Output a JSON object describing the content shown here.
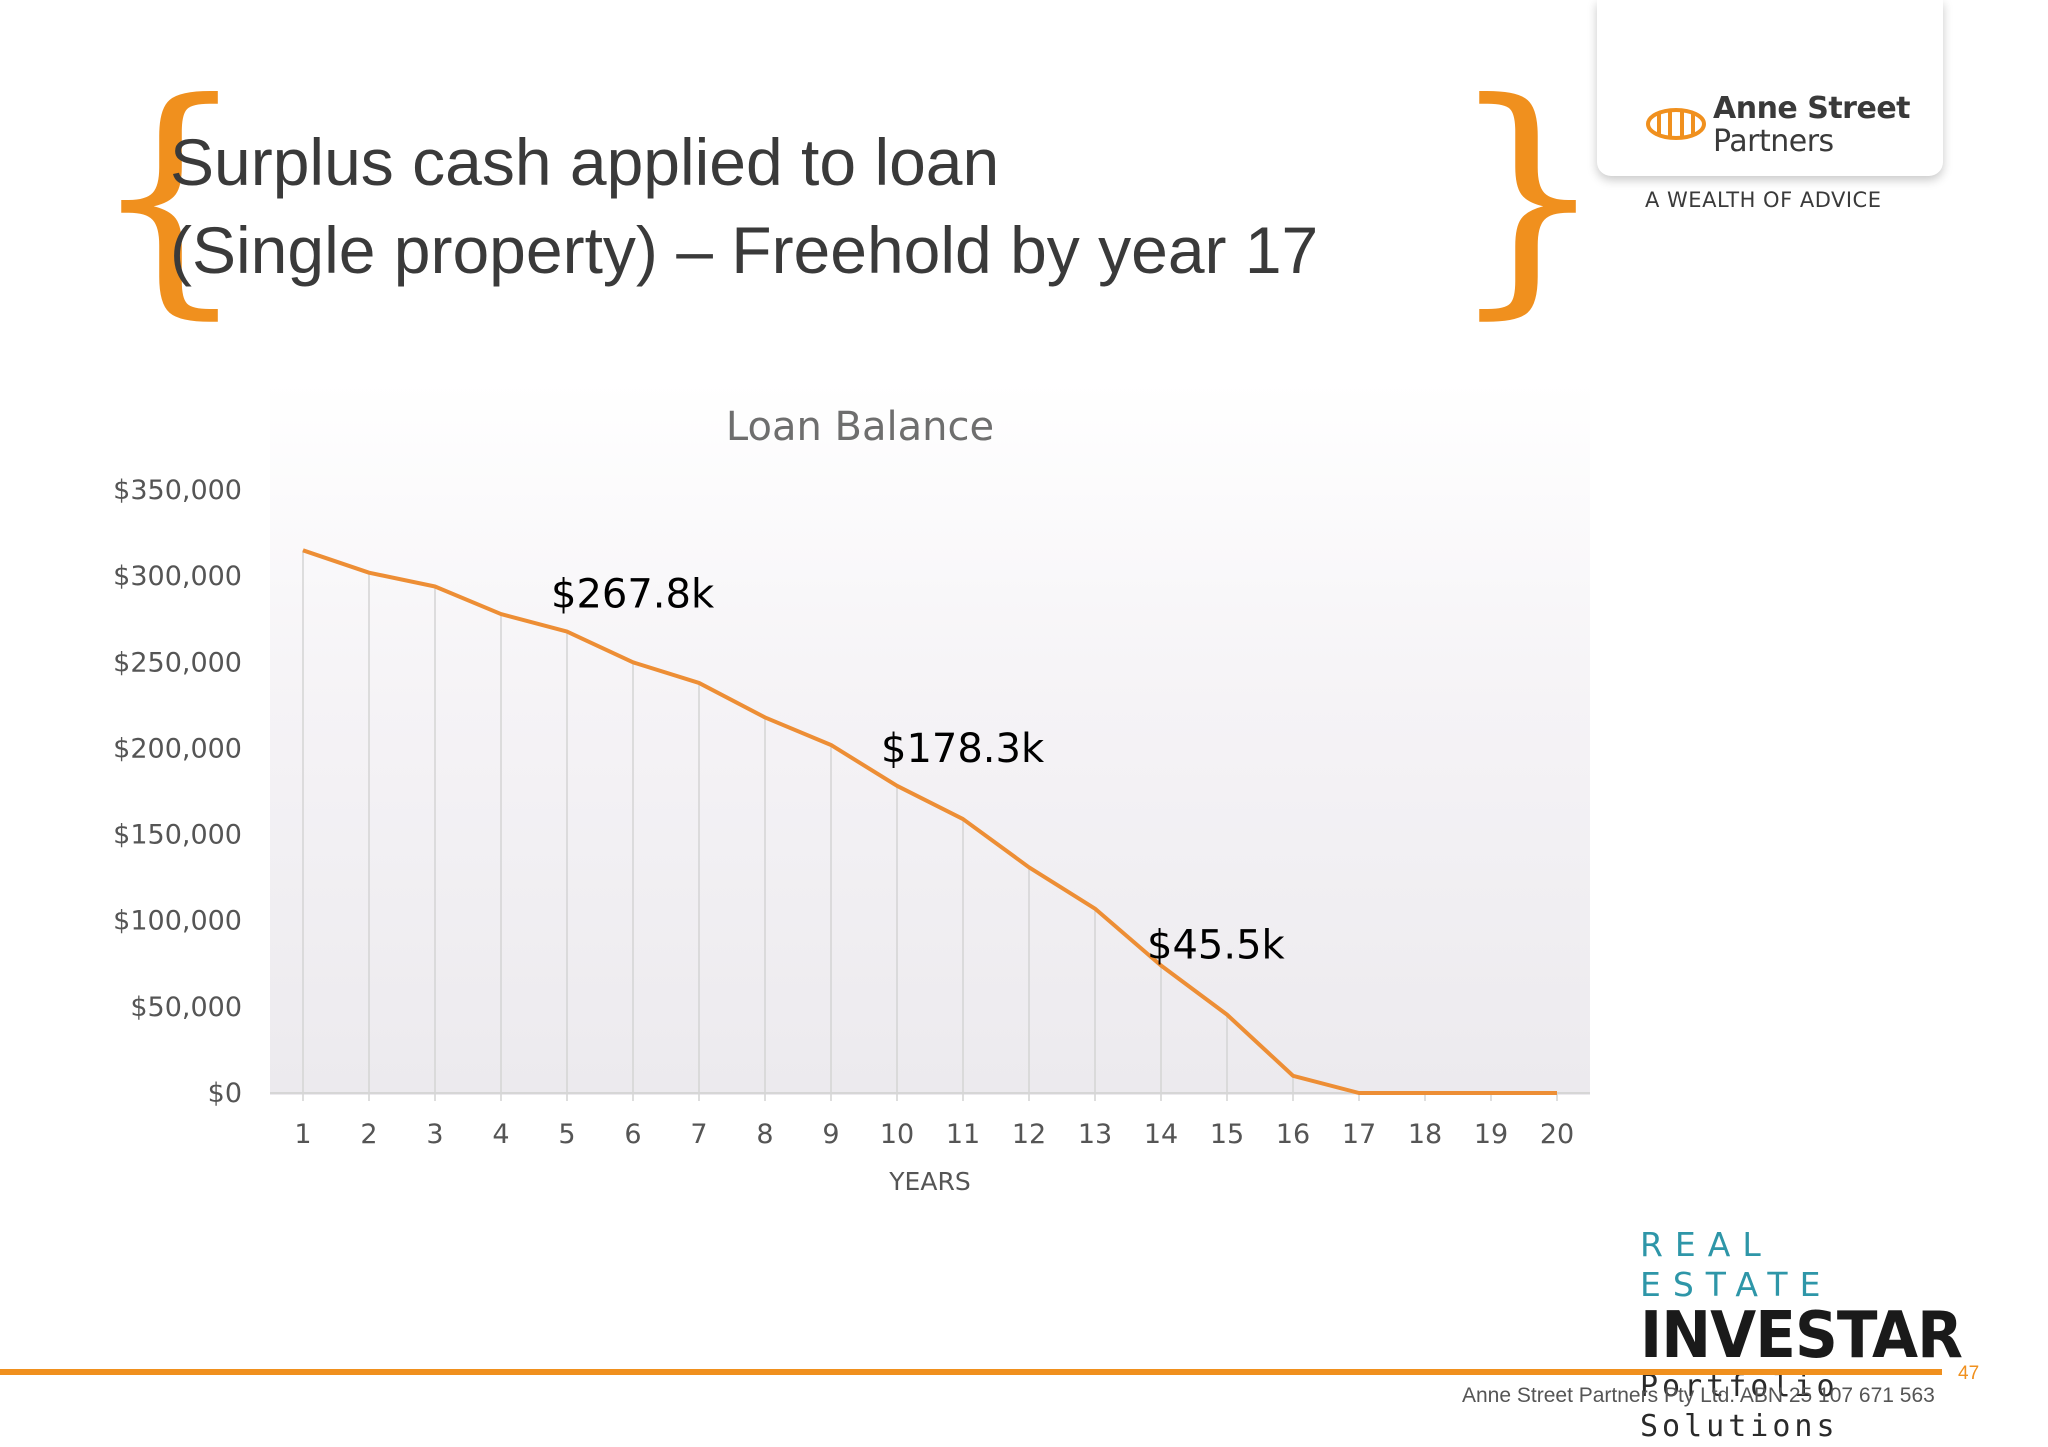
{
  "slide": {
    "brace_left": "{",
    "brace_right": "}",
    "title_line1": "Surplus cash applied to loan",
    "title_line2": "(Single property) – Freehold by year 17",
    "accent_color": "#f0901e"
  },
  "logo": {
    "name_line1": "Anne Street",
    "name_line2": "Partners",
    "tagline": "A WEALTH OF ADVICE"
  },
  "chart_data": {
    "type": "line",
    "title": "Loan Balance",
    "xlabel": "YEARS",
    "ylabel": "",
    "x": [
      1,
      2,
      3,
      4,
      5,
      6,
      7,
      8,
      9,
      10,
      11,
      12,
      13,
      14,
      15,
      16,
      17,
      18,
      19,
      20
    ],
    "series": [
      {
        "values": [
          315000,
          302000,
          294000,
          278000,
          267800,
          250000,
          238000,
          218000,
          202000,
          178300,
          159000,
          131000,
          107000,
          74000,
          45500,
          10000,
          0,
          0,
          0,
          0
        ],
        "color": "#ed8e35"
      }
    ],
    "ylim": [
      0,
      350000
    ],
    "yticks": [
      0,
      50000,
      100000,
      150000,
      200000,
      250000,
      300000,
      350000
    ],
    "ytick_labels": [
      "$0",
      "$50,000",
      "$100,000",
      "$150,000",
      "$200,000",
      "$250,000",
      "$300,000",
      "$350,000"
    ],
    "data_labels": [
      {
        "x": 5,
        "text": "$267.8k"
      },
      {
        "x": 10,
        "text": "$178.3k"
      },
      {
        "x": 15,
        "text": "$45.5k"
      }
    ],
    "grid": "vertical-drop-lines"
  },
  "branding": {
    "rei_line1": "REAL ESTATE",
    "rei_line2": "INVESTAR",
    "rei_line3": "Portfolio Solutions"
  },
  "footer": {
    "page_number": "47",
    "company_text": "Anne Street Partners Pty Ltd. ABN 25 107 671 563"
  }
}
